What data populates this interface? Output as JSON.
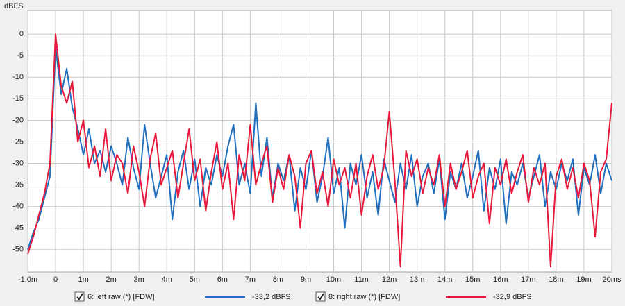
{
  "chart_data": {
    "type": "line",
    "y_label": "dBFS",
    "x": [
      -1.0,
      -0.8,
      -0.6,
      -0.4,
      -0.2,
      0.0,
      0.2,
      0.4,
      0.6,
      0.8,
      1.0,
      1.2,
      1.4,
      1.6,
      1.8,
      2.0,
      2.2,
      2.4,
      2.6,
      2.8,
      3.0,
      3.2,
      3.4,
      3.6,
      3.8,
      4.0,
      4.2,
      4.4,
      4.6,
      4.8,
      5.0,
      5.2,
      5.4,
      5.6,
      5.8,
      6.0,
      6.2,
      6.4,
      6.6,
      6.8,
      7.0,
      7.2,
      7.4,
      7.6,
      7.8,
      8.0,
      8.2,
      8.4,
      8.6,
      8.8,
      9.0,
      9.2,
      9.4,
      9.6,
      9.8,
      10.0,
      10.2,
      10.4,
      10.6,
      10.8,
      11.0,
      11.2,
      11.4,
      11.6,
      11.8,
      12.0,
      12.2,
      12.4,
      12.6,
      12.8,
      13.0,
      13.2,
      13.4,
      13.6,
      13.8,
      14.0,
      14.2,
      14.4,
      14.6,
      14.8,
      15.0,
      15.2,
      15.4,
      15.6,
      15.8,
      16.0,
      16.2,
      16.4,
      16.6,
      16.8,
      17.0,
      17.2,
      17.4,
      17.6,
      17.8,
      18.0,
      18.2,
      18.4,
      18.6,
      18.8,
      19.0,
      19.2,
      19.4,
      19.6,
      19.8,
      20.0
    ],
    "series": [
      {
        "name": "6: left raw (*) [FDW]",
        "level_label": "-33,2 dBFS",
        "color": "#1f6fc0",
        "values": [
          -50,
          -46,
          -43,
          -38,
          -33,
          -3,
          -14,
          -8,
          -17,
          -22,
          -28,
          -22,
          -30,
          -27,
          -32,
          -26,
          -30,
          -35,
          -24,
          -31,
          -36,
          -21,
          -30,
          -38,
          -33,
          -28,
          -43,
          -32,
          -27,
          -36,
          -29,
          -40,
          -31,
          -35,
          -28,
          -33,
          -26,
          -21,
          -35,
          -30,
          -37,
          -16,
          -33,
          -24,
          -38,
          -30,
          -34,
          -28,
          -41,
          -31,
          -36,
          -27,
          -39,
          -33,
          -24,
          -37,
          -31,
          -45,
          -30,
          -35,
          -28,
          -38,
          -32,
          -42,
          -29,
          -34,
          -39,
          -30,
          -36,
          -28,
          -40,
          -33,
          -30,
          -37,
          -29,
          -43,
          -32,
          -36,
          -30,
          -38,
          -33,
          -27,
          -41,
          -31,
          -36,
          -29,
          -44,
          -32,
          -35,
          -30,
          -38,
          -33,
          -28,
          -40,
          -32,
          -36,
          -30,
          -34,
          -29,
          -42,
          -31,
          -35,
          -28,
          -37,
          -30,
          -34
        ]
      },
      {
        "name": "8: right raw (*) [FDW]",
        "level_label": "-32,9 dBFS",
        "color": "#e8183a",
        "values": [
          -51,
          -47,
          -42,
          -37,
          -30,
          0,
          -12,
          -16,
          -11,
          -25,
          -20,
          -31,
          -26,
          -33,
          -22,
          -34,
          -28,
          -30,
          -37,
          -26,
          -32,
          -40,
          -29,
          -23,
          -35,
          -31,
          -27,
          -38,
          -30,
          -22,
          -34,
          -29,
          -41,
          -32,
          -25,
          -36,
          -30,
          -43,
          -28,
          -34,
          -21,
          -35,
          -30,
          -26,
          -39,
          -31,
          -36,
          -28,
          -33,
          -45,
          -30,
          -27,
          -37,
          -32,
          -40,
          -29,
          -35,
          -31,
          -38,
          -30,
          -42,
          -33,
          -28,
          -36,
          -31,
          -18,
          -34,
          -54,
          -27,
          -33,
          -29,
          -37,
          -31,
          -35,
          -28,
          -40,
          -30,
          -36,
          -32,
          -27,
          -38,
          -33,
          -30,
          -44,
          -31,
          -35,
          -29,
          -37,
          -32,
          -28,
          -39,
          -31,
          -35,
          -30,
          -54,
          -33,
          -29,
          -36,
          -31,
          -38,
          -30,
          -34,
          -47,
          -32,
          -29,
          -16
        ]
      }
    ],
    "xlim": [
      -1,
      20
    ],
    "ylim": [
      -55.2,
      5.5
    ],
    "xticks": [
      {
        "value": -1,
        "label": "-1,0m"
      },
      0,
      {
        "value": 1,
        "label": "1m"
      },
      {
        "value": 2,
        "label": "2m"
      },
      {
        "value": 3,
        "label": "3m"
      },
      {
        "value": 4,
        "label": "4m"
      },
      {
        "value": 5,
        "label": "5m"
      },
      {
        "value": 6,
        "label": "6m"
      },
      {
        "value": 7,
        "label": "7m"
      },
      {
        "value": 8,
        "label": "8m"
      },
      {
        "value": 9,
        "label": "9m"
      },
      {
        "value": 10,
        "label": "10m"
      },
      {
        "value": 11,
        "label": "11m"
      },
      {
        "value": 12,
        "label": "12m"
      },
      {
        "value": 13,
        "label": "13m"
      },
      {
        "value": 14,
        "label": "14m"
      },
      {
        "value": 15,
        "label": "15m"
      },
      {
        "value": 16,
        "label": "16m"
      },
      {
        "value": 17,
        "label": "17m"
      },
      {
        "value": 18,
        "label": "18m"
      },
      {
        "value": 19,
        "label": "19m"
      },
      {
        "value": 20,
        "label": "20ms"
      }
    ],
    "yticks": [
      0,
      -5,
      -10,
      -15,
      -20,
      -25,
      -30,
      -35,
      -40,
      -45,
      -50
    ],
    "grid": true
  }
}
